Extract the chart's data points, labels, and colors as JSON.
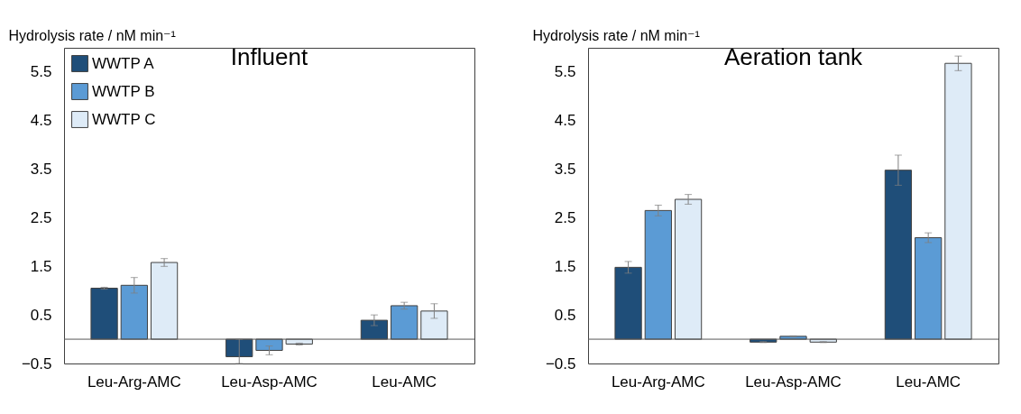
{
  "chart_data": [
    {
      "type": "bar",
      "title": "Influent",
      "ylabel": "Hydrolysis rate / nM min⁻¹",
      "categories": [
        "Leu-Arg-AMC",
        "Leu-Asp-AMC",
        "Leu-AMC"
      ],
      "ylim": [
        -0.5,
        6.0
      ],
      "yticks": [
        -0.5,
        0.5,
        1.5,
        2.5,
        3.5,
        4.5,
        5.5
      ],
      "grid": false,
      "legend": "top left",
      "ref_lines": [
        {
          "axis": "y",
          "value": 0,
          "color": "#595959"
        }
      ],
      "series": [
        {
          "name": "WWTP A",
          "color": "#1f4e79",
          "values": [
            1.05,
            -0.36,
            0.39
          ],
          "errors": [
            0.02,
            [
              -0.5,
              0
            ],
            0.11
          ]
        },
        {
          "name": "WWTP B",
          "color": "#5b9bd5",
          "values": [
            1.11,
            -0.23,
            0.69
          ],
          "errors": [
            0.16,
            0.09,
            0.07
          ]
        },
        {
          "name": "WWTP C",
          "color": "#deebf7",
          "values": [
            1.58,
            -0.1,
            0.58
          ],
          "errors": [
            0.08,
            0.02,
            0.15
          ]
        }
      ]
    },
    {
      "type": "bar",
      "title": "Aeration tank",
      "ylabel": "Hydrolysis rate / nM min⁻¹",
      "categories": [
        "Leu-Arg-AMC",
        "Leu-Asp-AMC",
        "Leu-AMC"
      ],
      "ylim": [
        -0.5,
        6.0
      ],
      "yticks": [
        -0.5,
        0.5,
        1.5,
        2.5,
        3.5,
        4.5,
        5.5
      ],
      "grid": false,
      "ref_lines": [
        {
          "axis": "y",
          "value": 0,
          "color": "#595959"
        }
      ],
      "series": [
        {
          "color": "#1f4e79",
          "values": [
            1.48,
            -0.06,
            3.48
          ],
          "errors": [
            0.12,
            0.01,
            0.31
          ]
        },
        {
          "color": "#5b9bd5",
          "values": [
            2.65,
            0.06,
            2.09
          ],
          "errors": [
            0.11,
            0.01,
            0.1
          ]
        },
        {
          "color": "#deebf7",
          "values": [
            2.88,
            -0.06,
            5.68
          ],
          "errors": [
            0.1,
            0.01,
            0.15
          ]
        }
      ]
    }
  ]
}
